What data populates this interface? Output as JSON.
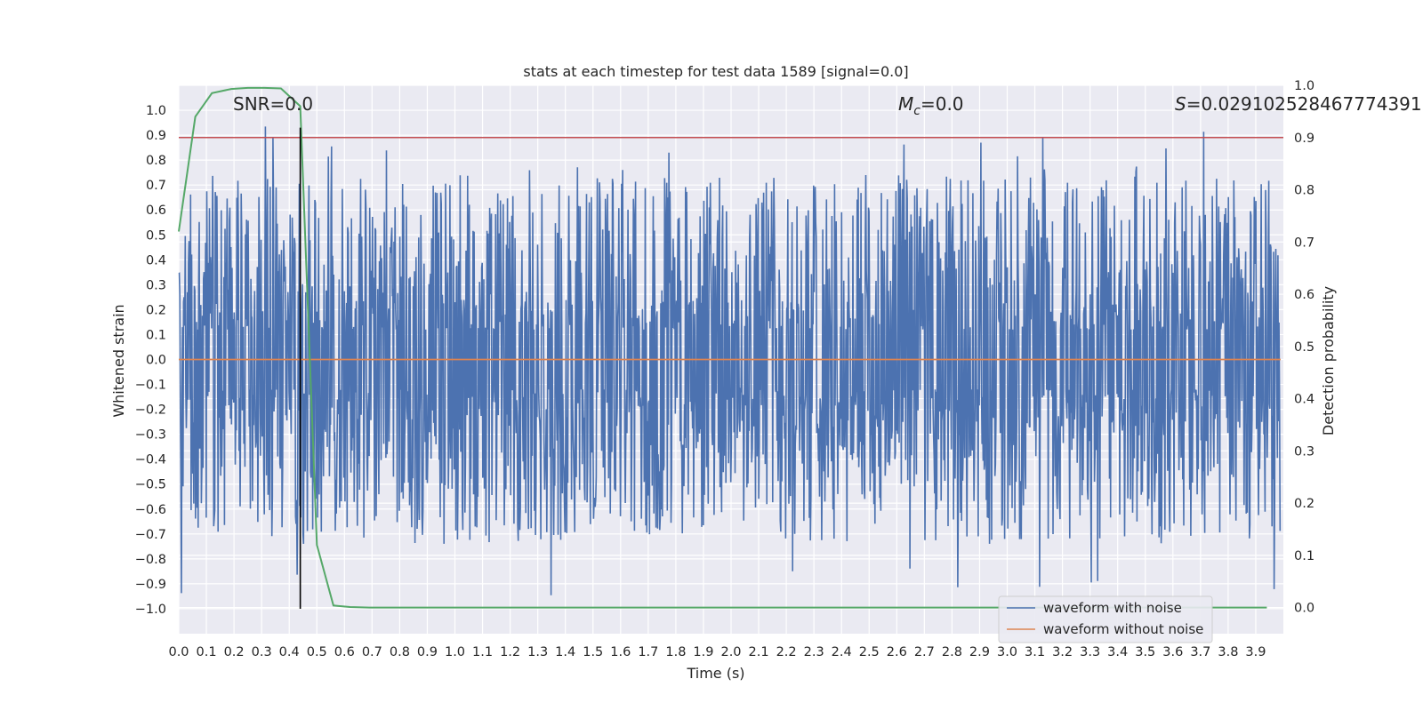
{
  "chart_data": {
    "type": "line",
    "title": "stats at each timestep for test data 1589 [signal=0.0]",
    "xlabel": "Time (s)",
    "ylabel": "Whitened strain",
    "ylabel_right": "Detection probability",
    "xlim": [
      0.0,
      4.0
    ],
    "ylim": [
      -1.1,
      1.1
    ],
    "ylim_right": [
      -0.05,
      1.0
    ],
    "x_ticks": [
      0.0,
      0.1,
      0.2,
      0.3,
      0.4,
      0.5,
      0.6,
      0.7,
      0.8,
      0.9,
      1.0,
      1.1,
      1.2,
      1.3,
      1.4,
      1.5,
      1.6,
      1.7,
      1.8,
      1.9,
      2.0,
      2.1,
      2.2,
      2.3,
      2.4,
      2.5,
      2.6,
      2.7,
      2.8,
      2.9,
      3.0,
      3.1,
      3.2,
      3.3,
      3.4,
      3.5,
      3.6,
      3.7,
      3.8,
      3.9
    ],
    "y_ticks": [
      -1.0,
      -0.9,
      -0.8,
      -0.7,
      -0.6,
      -0.5,
      -0.4,
      -0.3,
      -0.2,
      -0.1,
      0.0,
      0.1,
      0.2,
      0.3,
      0.4,
      0.5,
      0.6,
      0.7,
      0.8,
      0.9,
      1.0
    ],
    "y_ticks_right": [
      0.0,
      0.1,
      0.2,
      0.3,
      0.4,
      0.5,
      0.6,
      0.7,
      0.8,
      0.9,
      1.0
    ],
    "grid": true,
    "legend_position": "lower right",
    "annotations": {
      "snr": "SNR=0.0",
      "mc_symbol": "M",
      "mc_sub": "c",
      "mc_value": "=0.0",
      "s_symbol": "S",
      "s_value": "=0.029102528467774391"
    },
    "marker_time": 0.44,
    "threshold_probability": 0.9,
    "series": [
      {
        "name": "waveform with noise",
        "color": "#4c72b0",
        "note": "dense noise trace, x in [0, 4) s"
      },
      {
        "name": "waveform without noise",
        "color": "#dd8452",
        "values_constant": 0.0
      },
      {
        "color": "#55a868",
        "axis": "right",
        "x": [
          0.0,
          0.06,
          0.12,
          0.19,
          0.25,
          0.31,
          0.37,
          0.44,
          0.5,
          0.56,
          0.62,
          0.69,
          0.75,
          0.81,
          0.87,
          0.94,
          1.0,
          1.06,
          1.12,
          1.19,
          1.25,
          1.31,
          1.37,
          1.44,
          1.5,
          1.56,
          1.62,
          1.69,
          1.75,
          1.81,
          1.87,
          1.94,
          2.0,
          2.06,
          2.12,
          2.19,
          2.25,
          2.31,
          2.37,
          2.44,
          2.5,
          2.56,
          2.62,
          2.69,
          2.75,
          2.81,
          2.87,
          2.94,
          3.0,
          3.06,
          3.12,
          3.19,
          3.25,
          3.31,
          3.37,
          3.44,
          3.5,
          3.56,
          3.62,
          3.69,
          3.75,
          3.81,
          3.87,
          3.94
        ],
        "y": [
          0.72,
          0.94,
          0.985,
          0.993,
          0.995,
          0.995,
          0.994,
          0.96,
          0.12,
          0.004,
          0.001,
          0.0,
          0.0,
          0.0,
          0.0,
          0.0,
          0.0,
          0.0,
          0.0,
          0.0,
          0.0,
          0.0,
          0.0,
          0.0,
          0.0,
          0.0,
          0.0,
          0.0,
          0.0,
          0.0,
          0.0,
          0.0,
          0.0,
          0.0,
          0.0,
          0.0,
          0.0,
          0.0,
          0.0,
          0.0,
          0.0,
          0.0,
          0.0,
          0.0,
          0.0,
          0.0,
          0.0,
          0.0,
          0.0,
          0.0,
          0.0,
          0.0,
          0.0,
          0.0,
          0.0,
          0.0,
          0.0,
          0.0,
          0.0,
          0.0,
          0.0,
          0.0,
          0.0,
          0.0
        ]
      },
      {
        "color": "#c44e52",
        "axis": "right",
        "values_constant": 0.9
      }
    ]
  }
}
